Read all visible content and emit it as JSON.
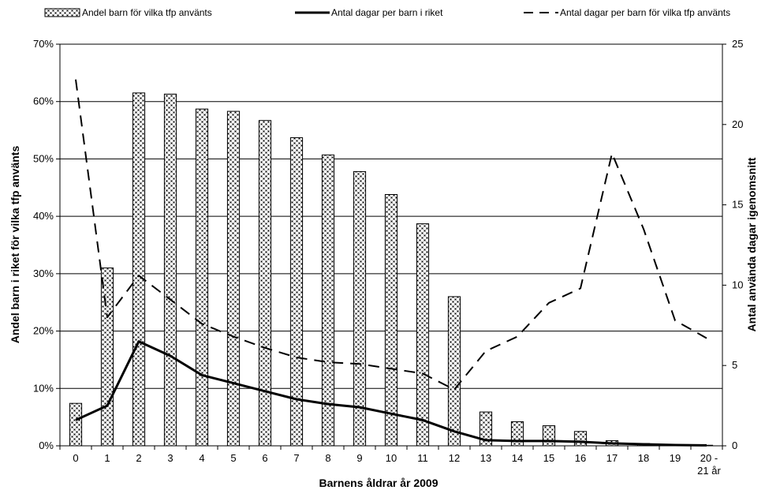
{
  "chart_data": {
    "type": "bar",
    "categories": [
      "0",
      "1",
      "2",
      "3",
      "4",
      "5",
      "6",
      "7",
      "8",
      "9",
      "10",
      "11",
      "12",
      "13",
      "14",
      "15",
      "16",
      "17",
      "18",
      "19",
      "20 - 21 år"
    ],
    "xlabel": "Barnens åldrar år 2009",
    "ylabel_left": "Andel barn i riket för vilka tfp använts",
    "ylabel_right": "Antal använda dagar igenomsnitt",
    "ylim_left": [
      0,
      70
    ],
    "ylim_right": [
      0,
      25
    ],
    "y_left_ticks": [
      "0%",
      "10%",
      "20%",
      "30%",
      "40%",
      "50%",
      "60%",
      "70%"
    ],
    "y_right_ticks": [
      "0",
      "5",
      "10",
      "15",
      "20",
      "25"
    ],
    "grid": true,
    "legend_position": "top",
    "series": [
      {
        "name": "Andel barn för vilka tfp använts",
        "kind": "bar",
        "axis": "left",
        "values": [
          7.4,
          31.0,
          61.5,
          61.3,
          58.7,
          58.3,
          56.7,
          53.7,
          50.7,
          47.8,
          43.8,
          38.7,
          26.0,
          5.9,
          4.2,
          3.5,
          2.5,
          0.9,
          0.4,
          0.1,
          0.1
        ]
      },
      {
        "name": "Antal dagar per barn i riket",
        "kind": "line",
        "style": "solid",
        "axis": "right",
        "values": [
          1.6,
          2.5,
          6.5,
          5.6,
          4.4,
          3.9,
          3.4,
          2.9,
          2.6,
          2.4,
          2.0,
          1.6,
          0.9,
          0.35,
          0.3,
          0.3,
          0.25,
          0.15,
          0.1,
          0.05,
          0.03
        ]
      },
      {
        "name": "Antal dagar per barn för vilka tfp använts",
        "kind": "line",
        "style": "dashed",
        "axis": "right",
        "values": [
          22.8,
          8.0,
          10.6,
          9.1,
          7.6,
          6.8,
          6.1,
          5.5,
          5.2,
          5.1,
          4.8,
          4.5,
          3.5,
          5.9,
          6.8,
          8.9,
          9.8,
          18.2,
          13.5,
          7.8,
          6.7
        ]
      }
    ],
    "colors": {
      "bar_check": "#000000",
      "bar_light": "#b8b8b8",
      "bar_bg": "#ffffff",
      "line": "#000000",
      "grid": "#000000"
    }
  }
}
